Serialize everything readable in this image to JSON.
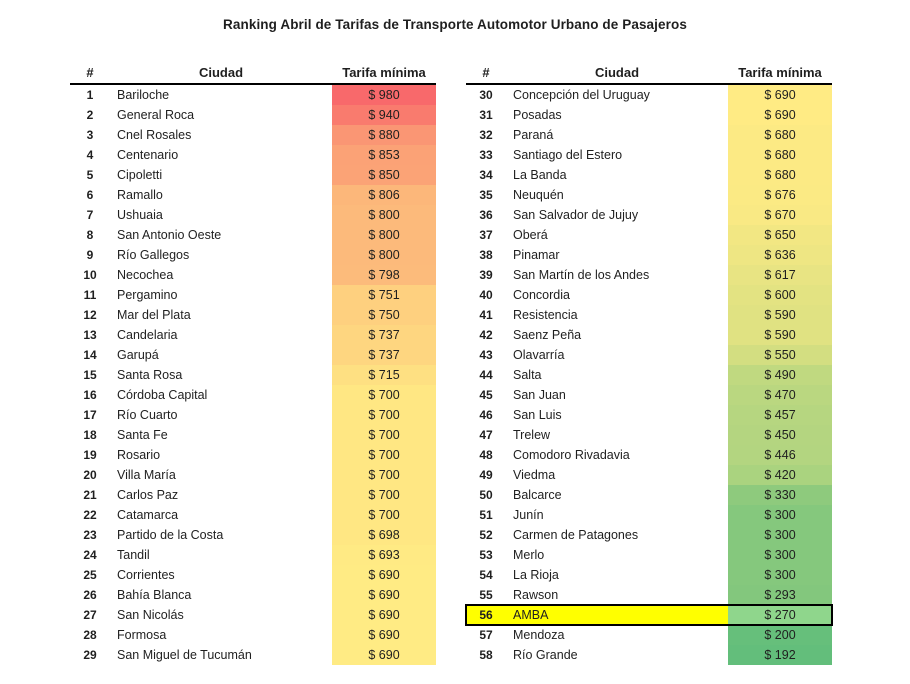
{
  "title": "Ranking Abril de Tarifas de Transporte Automotor Urbano de Pasajeros",
  "header": {
    "rank": "#",
    "city": "Ciudad",
    "fare": "Tarifa mínima"
  },
  "currency_prefix": "$",
  "color_scale": {
    "min_value": 192,
    "mid_value": 690,
    "max_value": 980,
    "min_color": "#63BE7B",
    "mid_color": "#FFEB84",
    "max_color": "#F8696B"
  },
  "highlight": {
    "rank": 56,
    "row_color": "#FFFF00",
    "fare_cell_color": "#8FD68C",
    "border_color": "#000000"
  },
  "layout": {
    "rows_per_table": 29
  },
  "chart_data": {
    "type": "table",
    "title": "Ranking Abril de Tarifas de Transporte Automotor Urbano de Pasajeros",
    "columns": [
      "#",
      "Ciudad",
      "Tarifa mínima"
    ],
    "legend_position": "none",
    "layout_hint": "two side-by-side tables: ranks 1-29 left, ranks 30-58 right; Tarifa mínima column has red-yellow-green heatmap (max 980 red #F8696B, mid 690 yellow #FFEB84, min 192 green #63BE7B); row 56 AMBA highlighted yellow with black outline",
    "rows": [
      {
        "rank": 1,
        "city": "Bariloche",
        "fare": 980
      },
      {
        "rank": 2,
        "city": "General Roca",
        "fare": 940
      },
      {
        "rank": 3,
        "city": "Cnel Rosales",
        "fare": 880
      },
      {
        "rank": 4,
        "city": "Centenario",
        "fare": 853
      },
      {
        "rank": 5,
        "city": "Cipoletti",
        "fare": 850
      },
      {
        "rank": 6,
        "city": "Ramallo",
        "fare": 806
      },
      {
        "rank": 7,
        "city": "Ushuaia",
        "fare": 800
      },
      {
        "rank": 8,
        "city": "San Antonio Oeste",
        "fare": 800
      },
      {
        "rank": 9,
        "city": "Río Gallegos",
        "fare": 800
      },
      {
        "rank": 10,
        "city": "Necochea",
        "fare": 798
      },
      {
        "rank": 11,
        "city": "Pergamino",
        "fare": 751
      },
      {
        "rank": 12,
        "city": "Mar del Plata",
        "fare": 750
      },
      {
        "rank": 13,
        "city": "Candelaria",
        "fare": 737
      },
      {
        "rank": 14,
        "city": "Garupá",
        "fare": 737
      },
      {
        "rank": 15,
        "city": "Santa Rosa",
        "fare": 715
      },
      {
        "rank": 16,
        "city": "Córdoba Capital",
        "fare": 700
      },
      {
        "rank": 17,
        "city": "Río Cuarto",
        "fare": 700
      },
      {
        "rank": 18,
        "city": "Santa Fe",
        "fare": 700
      },
      {
        "rank": 19,
        "city": "Rosario",
        "fare": 700
      },
      {
        "rank": 20,
        "city": "Villa María",
        "fare": 700
      },
      {
        "rank": 21,
        "city": "Carlos Paz",
        "fare": 700
      },
      {
        "rank": 22,
        "city": "Catamarca",
        "fare": 700
      },
      {
        "rank": 23,
        "city": "Partido de la Costa",
        "fare": 698
      },
      {
        "rank": 24,
        "city": "Tandil",
        "fare": 693
      },
      {
        "rank": 25,
        "city": "Corrientes",
        "fare": 690
      },
      {
        "rank": 26,
        "city": "Bahía Blanca",
        "fare": 690
      },
      {
        "rank": 27,
        "city": "San Nicolás",
        "fare": 690
      },
      {
        "rank": 28,
        "city": "Formosa",
        "fare": 690
      },
      {
        "rank": 29,
        "city": "San Miguel de Tucumán",
        "fare": 690
      },
      {
        "rank": 30,
        "city": "Concepción del Uruguay",
        "fare": 690
      },
      {
        "rank": 31,
        "city": "Posadas",
        "fare": 690
      },
      {
        "rank": 32,
        "city": "Paraná",
        "fare": 680
      },
      {
        "rank": 33,
        "city": "Santiago del Estero",
        "fare": 680
      },
      {
        "rank": 34,
        "city": "La Banda",
        "fare": 680
      },
      {
        "rank": 35,
        "city": "Neuquén",
        "fare": 676
      },
      {
        "rank": 36,
        "city": "San Salvador de Jujuy",
        "fare": 670
      },
      {
        "rank": 37,
        "city": "Oberá",
        "fare": 650
      },
      {
        "rank": 38,
        "city": "Pinamar",
        "fare": 636
      },
      {
        "rank": 39,
        "city": "San Martín de los Andes",
        "fare": 617
      },
      {
        "rank": 40,
        "city": "Concordia",
        "fare": 600
      },
      {
        "rank": 41,
        "city": "Resistencia",
        "fare": 590
      },
      {
        "rank": 42,
        "city": "Saenz Peña",
        "fare": 590
      },
      {
        "rank": 43,
        "city": "Olavarría",
        "fare": 550
      },
      {
        "rank": 44,
        "city": "Salta",
        "fare": 490
      },
      {
        "rank": 45,
        "city": "San Juan",
        "fare": 470
      },
      {
        "rank": 46,
        "city": "San Luis",
        "fare": 457
      },
      {
        "rank": 47,
        "city": "Trelew",
        "fare": 450
      },
      {
        "rank": 48,
        "city": "Comodoro Rivadavia",
        "fare": 446
      },
      {
        "rank": 49,
        "city": "Viedma",
        "fare": 420
      },
      {
        "rank": 50,
        "city": "Balcarce",
        "fare": 330
      },
      {
        "rank": 51,
        "city": "Junín",
        "fare": 300
      },
      {
        "rank": 52,
        "city": "Carmen de Patagones",
        "fare": 300
      },
      {
        "rank": 53,
        "city": "Merlo",
        "fare": 300
      },
      {
        "rank": 54,
        "city": "La Rioja",
        "fare": 300
      },
      {
        "rank": 55,
        "city": "Rawson",
        "fare": 293
      },
      {
        "rank": 56,
        "city": "AMBA",
        "fare": 270
      },
      {
        "rank": 57,
        "city": "Mendoza",
        "fare": 200
      },
      {
        "rank": 58,
        "city": "Río Grande",
        "fare": 192
      }
    ]
  }
}
